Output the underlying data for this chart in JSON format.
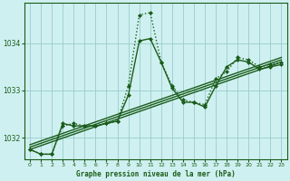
{
  "title": "Graphe pression niveau de la mer (hPa)",
  "bg_color": "#cff0f0",
  "grid_color": "#99cccc",
  "line_color": "#1a5c1a",
  "xlim": [
    -0.5,
    23.5
  ],
  "ylim": [
    1031.55,
    1034.85
  ],
  "yticks": [
    1032,
    1033,
    1034
  ],
  "xticks": [
    0,
    1,
    2,
    3,
    4,
    5,
    6,
    7,
    8,
    9,
    10,
    11,
    12,
    13,
    14,
    15,
    16,
    17,
    18,
    19,
    20,
    21,
    22,
    23
  ],
  "series": [
    {
      "x": [
        0,
        1,
        2,
        3,
        4,
        5,
        6,
        7,
        8,
        9,
        10,
        11,
        12,
        13,
        14,
        15,
        16,
        17,
        18,
        19,
        20,
        21,
        22,
        23
      ],
      "y": [
        1031.75,
        1031.65,
        1031.65,
        1032.25,
        1032.3,
        1032.25,
        1032.25,
        1032.3,
        1032.35,
        1033.1,
        1034.6,
        1034.65,
        1033.6,
        1033.1,
        1032.8,
        1032.75,
        1032.7,
        1033.25,
        1033.4,
        1033.7,
        1033.65,
        1033.5,
        1033.55,
        1033.6
      ],
      "linestyle": "dotted",
      "marker": true,
      "lw": 1.0
    },
    {
      "x": [
        0,
        1,
        2,
        3,
        4,
        5,
        6,
        7,
        8,
        9,
        10,
        11,
        12,
        13,
        14,
        15,
        16,
        17,
        18,
        19,
        20,
        21,
        22,
        23
      ],
      "y": [
        1031.75,
        1031.65,
        1031.65,
        1032.3,
        1032.25,
        1032.25,
        1032.25,
        1032.3,
        1032.35,
        1032.9,
        1034.05,
        1034.1,
        1033.6,
        1033.05,
        1032.75,
        1032.75,
        1032.65,
        1033.1,
        1033.5,
        1033.65,
        1033.6,
        1033.45,
        1033.5,
        1033.55
      ],
      "linestyle": "solid",
      "marker": true,
      "lw": 1.0
    },
    {
      "x": [
        0,
        23
      ],
      "y": [
        1031.75,
        1033.6
      ],
      "linestyle": "solid",
      "marker": false,
      "lw": 1.0
    },
    {
      "x": [
        0,
        23
      ],
      "y": [
        1031.8,
        1033.65
      ],
      "linestyle": "solid",
      "marker": false,
      "lw": 1.0
    },
    {
      "x": [
        0,
        23
      ],
      "y": [
        1031.85,
        1033.7
      ],
      "linestyle": "solid",
      "marker": false,
      "lw": 1.0
    }
  ]
}
